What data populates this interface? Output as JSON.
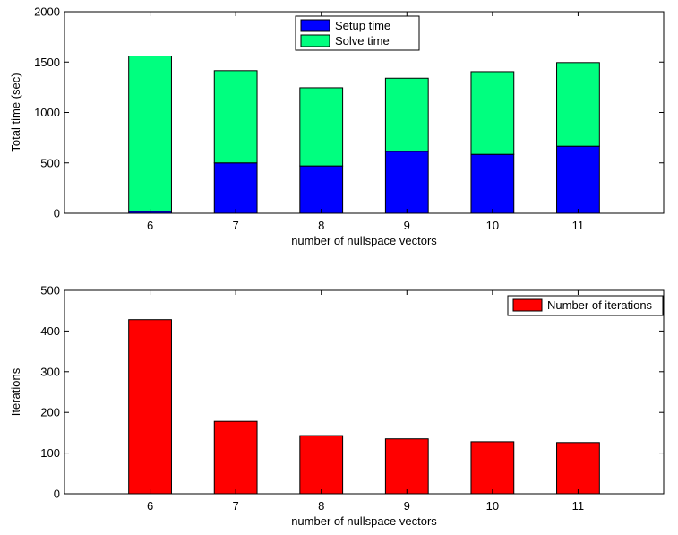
{
  "chart_data": [
    {
      "type": "bar",
      "stacked": true,
      "categories": [
        "6",
        "7",
        "8",
        "9",
        "10",
        "11"
      ],
      "series": [
        {
          "name": "Setup time",
          "color": "#0000ff",
          "values": [
            20,
            500,
            470,
            615,
            585,
            665
          ]
        },
        {
          "name": "Solve time",
          "color": "#00ff7f",
          "values": [
            1540,
            915,
            775,
            725,
            820,
            830
          ]
        }
      ],
      "xlabel": "number of nullspace vectors",
      "ylabel": "Total time (sec)",
      "ylim": [
        0,
        2000
      ],
      "yticks": [
        "0",
        "500",
        "1000",
        "1500",
        "2000"
      ],
      "legend_position": "top-center",
      "grid": false
    },
    {
      "type": "bar",
      "categories": [
        "6",
        "7",
        "8",
        "9",
        "10",
        "11"
      ],
      "series": [
        {
          "name": "Number of iterations",
          "color": "#ff0000",
          "values": [
            428,
            178,
            143,
            135,
            128,
            126
          ]
        }
      ],
      "xlabel": "number of nullspace vectors",
      "ylabel": "Iterations",
      "ylim": [
        0,
        500
      ],
      "yticks": [
        "0",
        "100",
        "200",
        "300",
        "400",
        "500"
      ],
      "legend_position": "top-right",
      "grid": false
    }
  ]
}
